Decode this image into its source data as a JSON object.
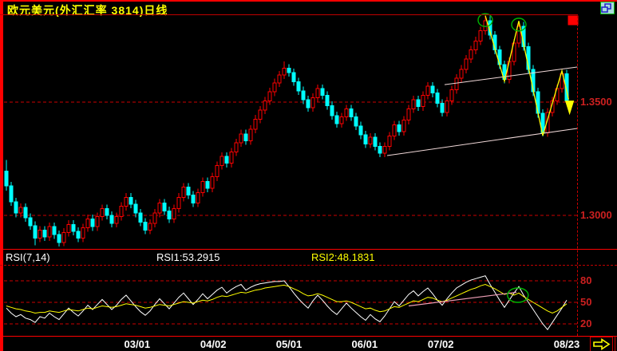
{
  "ui": {
    "title": "欧元美元(外汇汇率 3814)日线",
    "rsi_header": {
      "params": "RSI(7,14)",
      "rsi1": "RSI1:53.2915",
      "rsi2": "RSI2:48.1831",
      "params_color": "#ffffff",
      "rsi1_color": "#ffffff",
      "rsi2_color": "#ffff00"
    },
    "icons": {
      "restore_window": "restore-window-icon",
      "next_page": "next-page-arrow-icon"
    }
  },
  "colors": {
    "background": "#000000",
    "frame_red": "#ff0000",
    "grid_red": "#cc0000",
    "axis_label_red": "#cc2020",
    "title_yellow": "#ffff00",
    "candle_up": "#ff0000",
    "candle_down": "#00ffff",
    "rsi1_line": "#ffffff",
    "rsi2_line": "#ffff00",
    "channel_line": "#f0d8d8",
    "zigzag_yellow": "#ffff00",
    "annotation_green": "#00b400",
    "trendline_pink": "#f0a0b8",
    "date_label_white": "#ffffff"
  },
  "chart_data": [
    {
      "type": "candlestick",
      "title": "欧元美元(外汇汇率 3814)日线",
      "ylim": [
        1.2849,
        1.388
      ],
      "grid": true,
      "y_gridlines": [
        {
          "price": 1.35,
          "label": "1.3500"
        },
        {
          "price": 1.3,
          "label": "1.3000"
        }
      ],
      "x_ticks": [
        {
          "index": 27.3,
          "label": "03/01"
        },
        {
          "index": 43.2,
          "label": "04/02"
        },
        {
          "index": 59.0,
          "label": "05/01"
        },
        {
          "index": 74.8,
          "label": "06/01"
        },
        {
          "index": 90.7,
          "label": "07/02"
        },
        {
          "index": 117.0,
          "label": "08/23"
        }
      ],
      "candles_ohlc": [
        [
          1.3195,
          1.3245,
          1.311,
          1.313
        ],
        [
          1.313,
          1.3148,
          1.3042,
          1.306
        ],
        [
          1.306,
          1.3078,
          1.2992,
          1.301
        ],
        [
          1.301,
          1.3053,
          1.2992,
          1.3035
        ],
        [
          1.3035,
          1.3053,
          1.2972,
          1.299
        ],
        [
          1.299,
          1.3008,
          1.2937,
          1.2955
        ],
        [
          1.2955,
          1.2973,
          1.2868,
          1.29
        ],
        [
          1.29,
          1.2953,
          1.2882,
          1.2935
        ],
        [
          1.2935,
          1.2953,
          1.2887,
          1.2905
        ],
        [
          1.2905,
          1.2968,
          1.2887,
          1.295
        ],
        [
          1.295,
          1.2968,
          1.2897,
          1.2915
        ],
        [
          1.2915,
          1.2933,
          1.2862,
          1.288
        ],
        [
          1.288,
          1.2943,
          1.2864,
          1.2925
        ],
        [
          1.2925,
          1.2978,
          1.2907,
          1.296
        ],
        [
          1.296,
          1.2978,
          1.2912,
          1.293
        ],
        [
          1.293,
          1.2948,
          1.2882,
          1.29
        ],
        [
          1.29,
          1.2963,
          1.2882,
          1.2945
        ],
        [
          1.2945,
          1.3003,
          1.2927,
          1.2985
        ],
        [
          1.2985,
          1.3003,
          1.2932,
          1.295
        ],
        [
          1.295,
          1.3013,
          1.2932,
          1.2995
        ],
        [
          1.2995,
          1.3048,
          1.2977,
          1.303
        ],
        [
          1.303,
          1.3048,
          1.2982,
          1.3
        ],
        [
          1.3,
          1.3018,
          1.2947,
          1.2965
        ],
        [
          1.2965,
          1.3013,
          1.2947,
          1.2995
        ],
        [
          1.2995,
          1.3058,
          1.2977,
          1.304
        ],
        [
          1.304,
          1.3098,
          1.3022,
          1.308
        ],
        [
          1.308,
          1.3098,
          1.3032,
          1.305
        ],
        [
          1.305,
          1.3068,
          1.2992,
          1.301
        ],
        [
          1.301,
          1.3028,
          1.2952,
          1.297
        ],
        [
          1.297,
          1.2988,
          1.2917,
          1.2935
        ],
        [
          1.2935,
          1.2983,
          1.2917,
          1.2965
        ],
        [
          1.2965,
          1.3028,
          1.2947,
          1.301
        ],
        [
          1.301,
          1.3073,
          1.2992,
          1.3055
        ],
        [
          1.3055,
          1.3073,
          1.3002,
          1.302
        ],
        [
          1.302,
          1.3038,
          1.2967,
          1.2985
        ],
        [
          1.2985,
          1.3048,
          1.2967,
          1.303
        ],
        [
          1.303,
          1.3098,
          1.3012,
          1.308
        ],
        [
          1.308,
          1.3143,
          1.3062,
          1.3125
        ],
        [
          1.3125,
          1.3143,
          1.3072,
          1.309
        ],
        [
          1.309,
          1.3108,
          1.3037,
          1.3055
        ],
        [
          1.3055,
          1.3118,
          1.3037,
          1.31
        ],
        [
          1.31,
          1.3168,
          1.3082,
          1.315
        ],
        [
          1.315,
          1.3168,
          1.3102,
          1.312
        ],
        [
          1.312,
          1.3188,
          1.3102,
          1.317
        ],
        [
          1.317,
          1.3238,
          1.3152,
          1.322
        ],
        [
          1.322,
          1.3278,
          1.3202,
          1.326
        ],
        [
          1.326,
          1.3278,
          1.3212,
          1.323
        ],
        [
          1.323,
          1.3298,
          1.3212,
          1.328
        ],
        [
          1.328,
          1.3338,
          1.3262,
          1.332
        ],
        [
          1.332,
          1.3378,
          1.3302,
          1.336
        ],
        [
          1.336,
          1.3378,
          1.3312,
          1.333
        ],
        [
          1.333,
          1.3398,
          1.3312,
          1.338
        ],
        [
          1.338,
          1.3443,
          1.3362,
          1.3425
        ],
        [
          1.3425,
          1.3483,
          1.3407,
          1.3465
        ],
        [
          1.3465,
          1.3523,
          1.3447,
          1.3505
        ],
        [
          1.3505,
          1.3563,
          1.3487,
          1.3545
        ],
        [
          1.3545,
          1.3603,
          1.3527,
          1.3585
        ],
        [
          1.3585,
          1.3638,
          1.3567,
          1.362
        ],
        [
          1.362,
          1.368,
          1.3602,
          1.365
        ],
        [
          1.365,
          1.3668,
          1.3612,
          1.363
        ],
        [
          1.363,
          1.3648,
          1.3572,
          1.359
        ],
        [
          1.359,
          1.3608,
          1.3532,
          1.355
        ],
        [
          1.355,
          1.3568,
          1.3492,
          1.351
        ],
        [
          1.351,
          1.3528,
          1.3457,
          1.3475
        ],
        [
          1.3475,
          1.3538,
          1.3457,
          1.352
        ],
        [
          1.352,
          1.3578,
          1.3502,
          1.356
        ],
        [
          1.356,
          1.3578,
          1.3512,
          1.353
        ],
        [
          1.353,
          1.3548,
          1.3467,
          1.3485
        ],
        [
          1.3485,
          1.3503,
          1.3422,
          1.344
        ],
        [
          1.344,
          1.3458,
          1.3387,
          1.3405
        ],
        [
          1.3405,
          1.3453,
          1.3387,
          1.3435
        ],
        [
          1.3435,
          1.3488,
          1.3417,
          1.347
        ],
        [
          1.347,
          1.3488,
          1.3417,
          1.3435
        ],
        [
          1.3435,
          1.3453,
          1.3377,
          1.3395
        ],
        [
          1.3395,
          1.3413,
          1.3337,
          1.3355
        ],
        [
          1.3355,
          1.3373,
          1.3297,
          1.3315
        ],
        [
          1.3315,
          1.3363,
          1.3297,
          1.3345
        ],
        [
          1.3345,
          1.3363,
          1.3287,
          1.3305
        ],
        [
          1.3305,
          1.3323,
          1.3257,
          1.3275
        ],
        [
          1.3275,
          1.3323,
          1.3257,
          1.3305
        ],
        [
          1.3305,
          1.3368,
          1.3287,
          1.335
        ],
        [
          1.335,
          1.3418,
          1.3332,
          1.34
        ],
        [
          1.34,
          1.3418,
          1.3352,
          1.337
        ],
        [
          1.337,
          1.3438,
          1.3352,
          1.342
        ],
        [
          1.342,
          1.3488,
          1.3402,
          1.347
        ],
        [
          1.347,
          1.3528,
          1.3452,
          1.351
        ],
        [
          1.351,
          1.3528,
          1.3462,
          1.348
        ],
        [
          1.348,
          1.3548,
          1.3462,
          1.353
        ],
        [
          1.353,
          1.3588,
          1.3512,
          1.357
        ],
        [
          1.357,
          1.3588,
          1.3522,
          1.354
        ],
        [
          1.354,
          1.3558,
          1.3477,
          1.3495
        ],
        [
          1.3495,
          1.3513,
          1.3437,
          1.3455
        ],
        [
          1.3455,
          1.3523,
          1.3437,
          1.3505
        ],
        [
          1.3505,
          1.3573,
          1.3487,
          1.3555
        ],
        [
          1.3555,
          1.3623,
          1.3537,
          1.3605
        ],
        [
          1.3605,
          1.3663,
          1.3587,
          1.3645
        ],
        [
          1.3645,
          1.3708,
          1.3627,
          1.369
        ],
        [
          1.369,
          1.3748,
          1.3672,
          1.373
        ],
        [
          1.373,
          1.3788,
          1.3712,
          1.377
        ],
        [
          1.377,
          1.3833,
          1.3752,
          1.3815
        ],
        [
          1.3815,
          1.3882,
          1.3797,
          1.386
        ],
        [
          1.386,
          1.3878,
          1.3777,
          1.3795
        ],
        [
          1.3795,
          1.3813,
          1.3712,
          1.373
        ],
        [
          1.373,
          1.3748,
          1.3647,
          1.3665
        ],
        [
          1.3665,
          1.3683,
          1.3582,
          1.36
        ],
        [
          1.36,
          1.3698,
          1.3582,
          1.368
        ],
        [
          1.368,
          1.3778,
          1.3662,
          1.376
        ],
        [
          1.376,
          1.3858,
          1.3742,
          1.3835
        ],
        [
          1.3835,
          1.3853,
          1.3727,
          1.3745
        ],
        [
          1.3745,
          1.3763,
          1.3627,
          1.3645
        ],
        [
          1.3645,
          1.3663,
          1.3527,
          1.3545
        ],
        [
          1.3545,
          1.3563,
          1.3432,
          1.345
        ],
        [
          1.345,
          1.3468,
          1.3348,
          1.3365
        ],
        [
          1.3365,
          1.3473,
          1.3347,
          1.3455
        ],
        [
          1.3455,
          1.3523,
          1.3437,
          1.3505
        ],
        [
          1.3505,
          1.3578,
          1.3487,
          1.356
        ],
        [
          1.356,
          1.3643,
          1.3542,
          1.3625
        ],
        [
          1.3625,
          1.3643,
          1.3487,
          1.3505
        ]
      ],
      "annotations": {
        "channel_lines": [
          {
            "points": [
              [
                79.5,
                1.3264
              ],
              [
                119.2,
                1.3384
              ]
            ]
          },
          {
            "points": [
              [
                91.5,
                1.3577
              ],
              [
                119.2,
                1.3655
              ]
            ]
          }
        ],
        "zigzag": [
          [
            100,
            1.3882
          ],
          [
            104,
            1.3592
          ],
          [
            107,
            1.3858
          ],
          [
            112,
            1.3352
          ],
          [
            116,
            1.3638
          ],
          [
            117.4,
            1.3512
          ]
        ],
        "ellipses": [
          {
            "index": 100,
            "price": 1.3862
          },
          {
            "index": 107,
            "price": 1.3842
          }
        ],
        "down_arrow": {
          "index": 117.6,
          "price": 1.3505
        },
        "marker_square": {
          "x": 712,
          "y": 20,
          "w": 12,
          "h": 11
        }
      }
    },
    {
      "type": "line",
      "name": "RSI",
      "ylim": [
        0,
        100
      ],
      "gridlines": [
        {
          "value": 80,
          "label": "80"
        },
        {
          "value": 50,
          "label": "50"
        },
        {
          "value": 20,
          "label": "20"
        }
      ],
      "series": [
        {
          "name": "RSI1",
          "period": 7,
          "last_value": 53.2915,
          "color": "#ffffff",
          "values": [
            42,
            35,
            30,
            33,
            28,
            26,
            22,
            30,
            28,
            35,
            30,
            26,
            34,
            42,
            36,
            31,
            38,
            46,
            40,
            47,
            54,
            47,
            40,
            46,
            54,
            60,
            52,
            44,
            37,
            32,
            38,
            47,
            55,
            48,
            41,
            49,
            57,
            63,
            55,
            47,
            54,
            62,
            55,
            61,
            67,
            71,
            63,
            68,
            72,
            75,
            67,
            71,
            74,
            76,
            77,
            78,
            79,
            79,
            80,
            72,
            63,
            55,
            48,
            42,
            52,
            60,
            53,
            45,
            38,
            33,
            41,
            49,
            42,
            36,
            30,
            25,
            33,
            27,
            23,
            31,
            41,
            51,
            45,
            53,
            61,
            66,
            59,
            65,
            70,
            62,
            53,
            46,
            55,
            63,
            70,
            74,
            78,
            81,
            83,
            85,
            87,
            75,
            64,
            53,
            43,
            53,
            63,
            72,
            60,
            50,
            40,
            30,
            20,
            12,
            22,
            32,
            42,
            53
          ]
        },
        {
          "name": "RSI2",
          "period": 14,
          "last_value": 48.1831,
          "color": "#ffff00",
          "values": [
            45,
            43,
            41,
            40,
            38,
            37,
            35,
            36,
            36,
            38,
            37,
            36,
            38,
            40,
            39,
            38,
            40,
            42,
            41,
            43,
            45,
            44,
            43,
            44,
            46,
            48,
            47,
            46,
            44,
            42,
            43,
            45,
            47,
            46,
            45,
            47,
            49,
            51,
            50,
            49,
            51,
            53,
            52,
            54,
            57,
            59,
            58,
            60,
            62,
            64,
            63,
            65,
            67,
            68,
            70,
            71,
            72,
            73,
            74,
            72,
            69,
            66,
            62,
            59,
            60,
            62,
            60,
            57,
            54,
            51,
            51,
            52,
            50,
            47,
            44,
            41,
            42,
            39,
            37,
            38,
            41,
            44,
            43,
            46,
            49,
            52,
            51,
            54,
            57,
            56,
            53,
            51,
            53,
            56,
            59,
            62,
            65,
            68,
            70,
            73,
            75,
            72,
            69,
            65,
            61,
            63,
            60,
            63,
            58,
            54,
            50,
            46,
            42,
            38,
            35,
            38,
            43,
            48
          ]
        }
      ],
      "annotations": {
        "trendline_pink": {
          "points": [
            [
              84,
              45
            ],
            [
              106.5,
              64
            ]
          ]
        },
        "ellipse": {
          "index": 106.8,
          "value": 60
        }
      }
    }
  ]
}
